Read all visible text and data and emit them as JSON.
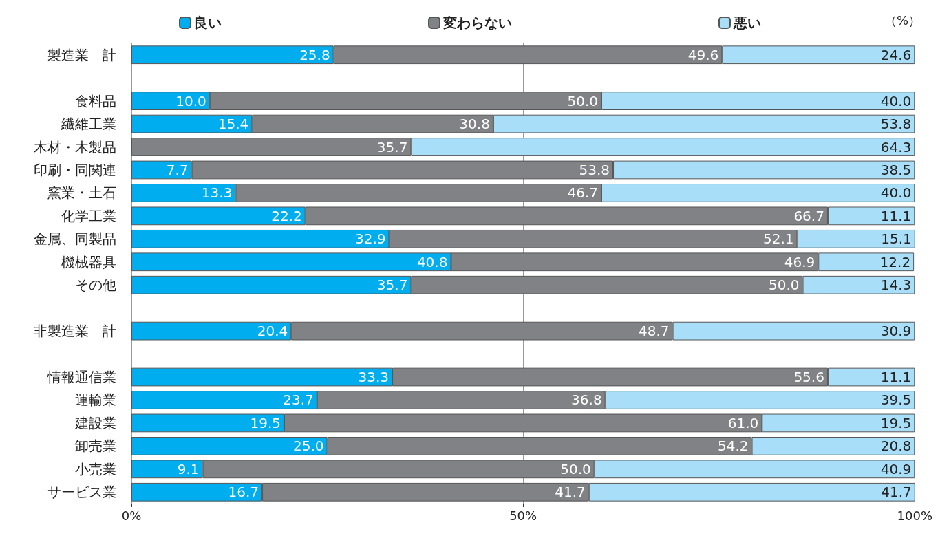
{
  "chart_data": {
    "type": "bar",
    "orientation": "horizontal",
    "stacked": true,
    "categories": [
      "製造業　計",
      null,
      "食料品",
      "繊維工業",
      "木材・木製品",
      "印刷・同関連",
      "窯業・土石",
      "化学工業",
      "金属、同製品",
      "機械器具",
      "その他",
      null,
      "非製造業　計",
      null,
      "情報通信業",
      "運輸業",
      "建設業",
      "卸売業",
      "小売業",
      "サービス業"
    ],
    "series": [
      {
        "name": "良い",
        "color": "#00aeef",
        "values": [
          25.8,
          null,
          10.0,
          15.4,
          null,
          7.7,
          13.3,
          22.2,
          32.9,
          40.8,
          35.7,
          null,
          20.4,
          null,
          33.3,
          23.7,
          19.5,
          25.0,
          9.1,
          16.7
        ],
        "value_labels": [
          "25.8",
          null,
          "10.0",
          "15.4",
          null,
          "7.7",
          "13.3",
          "22.2",
          "32.9",
          "40.8",
          "35.7",
          null,
          "20.4",
          null,
          "33.3",
          "23.7",
          "19.5",
          "25.0",
          "9.1",
          "16.7"
        ]
      },
      {
        "name": "変わらない",
        "color": "#808285",
        "values": [
          49.6,
          null,
          50.0,
          30.8,
          35.7,
          53.8,
          46.7,
          66.7,
          52.1,
          46.9,
          50.0,
          null,
          48.7,
          null,
          55.6,
          36.8,
          61.0,
          54.2,
          50.0,
          41.7
        ],
        "value_labels": [
          "49.6",
          null,
          "50.0",
          "30.8",
          "35.7",
          "53.8",
          "46.7",
          "66.7",
          "52.1",
          "46.9",
          "50.0",
          null,
          "48.7",
          null,
          "55.6",
          "36.8",
          "61.0",
          "54.2",
          "50.0",
          "41.7"
        ]
      },
      {
        "name": "悪い",
        "color": "#a8def8",
        "values": [
          24.6,
          null,
          40.0,
          53.8,
          64.3,
          38.5,
          40.0,
          11.1,
          15.1,
          12.2,
          14.3,
          null,
          30.9,
          null,
          11.1,
          39.5,
          19.5,
          20.8,
          40.9,
          41.7
        ],
        "value_labels": [
          "24.6",
          null,
          "40.0",
          "53.8",
          "64.3",
          "38.5",
          "40.0",
          "11.1",
          "15.1",
          "12.2",
          "14.3",
          null,
          "30.9",
          null,
          "11.1",
          "39.5",
          "19.5",
          "20.8",
          "40.9",
          "41.7"
        ]
      }
    ],
    "xlim": [
      0,
      100
    ],
    "xticks": [
      {
        "value": 0,
        "label": "0%"
      },
      {
        "value": 50,
        "label": "50%"
      },
      {
        "value": 100,
        "label": "100%"
      }
    ],
    "grid": "x",
    "legend": "top",
    "annotations": [
      "（%）"
    ]
  }
}
